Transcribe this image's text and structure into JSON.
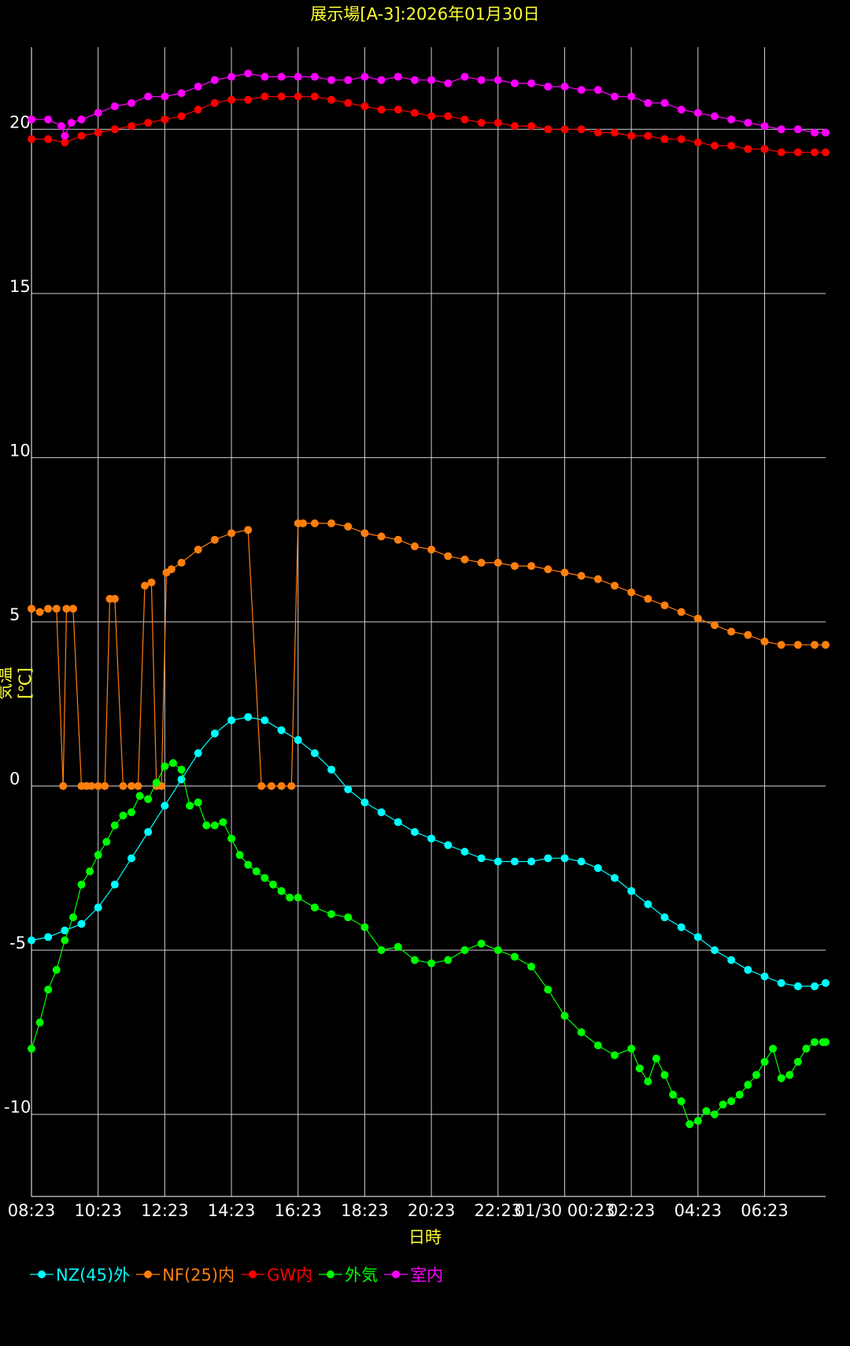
{
  "chart_data": {
    "type": "line",
    "title": "展示場[A-3]:2026年01月30日",
    "xlabel": "日時",
    "ylabel": "気温[℃]",
    "ylim": [
      -12.5,
      22.5
    ],
    "y_ticks": [
      20,
      15,
      10,
      5,
      0,
      -5,
      -10
    ],
    "x_ticks": [
      "08:23",
      "10:23",
      "12:23",
      "14:23",
      "16:23",
      "18:23",
      "20:23",
      "22:23",
      "01/30 00:23",
      "02:23",
      "04:23",
      "06:23"
    ],
    "x_range_hours": [
      0,
      23.83
    ],
    "grid": true,
    "legend_position": "bottom-left",
    "series": [
      {
        "name": "NZ(45)外",
        "color": "#00ffff",
        "x": [
          0,
          0.5,
          1,
          1.5,
          2,
          2.5,
          3,
          3.5,
          4,
          4.5,
          5,
          5.5,
          6,
          6.5,
          7,
          7.5,
          8,
          8.5,
          9,
          9.5,
          10,
          10.5,
          11,
          11.5,
          12,
          12.5,
          13,
          13.5,
          14,
          14.5,
          15,
          15.5,
          16,
          16.5,
          17,
          17.5,
          18,
          18.5,
          19,
          19.5,
          20,
          20.5,
          21,
          21.5,
          22,
          22.5,
          23,
          23.5,
          23.83
        ],
        "y": [
          -4.7,
          -4.6,
          -4.4,
          -4.2,
          -3.7,
          -3.0,
          -2.2,
          -1.4,
          -0.6,
          0.2,
          1.0,
          1.6,
          2.0,
          2.1,
          2.0,
          1.7,
          1.4,
          1.0,
          0.5,
          -0.1,
          -0.5,
          -0.8,
          -1.1,
          -1.4,
          -1.6,
          -1.8,
          -2.0,
          -2.2,
          -2.3,
          -2.3,
          -2.3,
          -2.2,
          -2.2,
          -2.3,
          -2.5,
          -2.8,
          -3.2,
          -3.6,
          -4.0,
          -4.3,
          -4.6,
          -5.0,
          -5.3,
          -5.6,
          -5.8,
          -6.0,
          -6.1,
          -6.1,
          -6.0
        ]
      },
      {
        "name": "NF(25)内",
        "color": "#ff7f0e",
        "x": [
          0,
          0.25,
          0.5,
          0.75,
          0.95,
          1.05,
          1.25,
          1.5,
          1.65,
          1.8,
          2.0,
          2.2,
          2.35,
          2.5,
          2.75,
          3.0,
          3.2,
          3.4,
          3.6,
          3.75,
          3.9,
          4.05,
          4.2,
          4.5,
          5.0,
          5.5,
          6.0,
          6.5,
          6.9,
          7.2,
          7.5,
          7.8,
          8.0,
          8.15,
          8.5,
          9.0,
          9.5,
          10,
          10.5,
          11,
          11.5,
          12,
          12.5,
          13,
          13.5,
          14,
          14.5,
          15,
          15.5,
          16,
          16.5,
          17,
          17.5,
          18,
          18.5,
          19,
          19.5,
          20,
          20.5,
          21,
          21.5,
          22,
          22.5,
          23,
          23.5,
          23.83
        ],
        "y": [
          5.4,
          5.3,
          5.4,
          5.4,
          0.0,
          5.4,
          5.4,
          0.0,
          0.0,
          0.0,
          0.0,
          0.0,
          5.7,
          5.7,
          0.0,
          0.0,
          0.0,
          6.1,
          6.2,
          0.0,
          0.0,
          6.5,
          6.6,
          6.8,
          7.2,
          7.5,
          7.7,
          7.8,
          0.0,
          0.0,
          0.0,
          0.0,
          8.0,
          8.0,
          8.0,
          8.0,
          7.9,
          7.7,
          7.6,
          7.5,
          7.3,
          7.2,
          7.0,
          6.9,
          6.8,
          6.8,
          6.7,
          6.7,
          6.6,
          6.5,
          6.4,
          6.3,
          6.1,
          5.9,
          5.7,
          5.5,
          5.3,
          5.1,
          4.9,
          4.7,
          4.6,
          4.4,
          4.3,
          4.3,
          4.3,
          4.3
        ]
      },
      {
        "name": "GW内",
        "color": "#ff0000",
        "x": [
          0,
          0.5,
          1,
          1.5,
          2,
          2.5,
          3,
          3.5,
          4,
          4.5,
          5,
          5.5,
          6,
          6.5,
          7,
          7.5,
          8,
          8.5,
          9,
          9.5,
          10,
          10.5,
          11,
          11.5,
          12,
          12.5,
          13,
          13.5,
          14,
          14.5,
          15,
          15.5,
          16,
          16.5,
          17,
          17.5,
          18,
          18.5,
          19,
          19.5,
          20,
          20.5,
          21,
          21.5,
          22,
          22.5,
          23,
          23.5,
          23.83
        ],
        "y": [
          19.7,
          19.7,
          19.6,
          19.8,
          19.9,
          20.0,
          20.1,
          20.2,
          20.3,
          20.4,
          20.6,
          20.8,
          20.9,
          20.9,
          21.0,
          21.0,
          21.0,
          21.0,
          20.9,
          20.8,
          20.7,
          20.6,
          20.6,
          20.5,
          20.4,
          20.4,
          20.3,
          20.2,
          20.2,
          20.1,
          20.1,
          20.0,
          20.0,
          20.0,
          19.9,
          19.9,
          19.8,
          19.8,
          19.7,
          19.7,
          19.6,
          19.5,
          19.5,
          19.4,
          19.4,
          19.3,
          19.3,
          19.3,
          19.3
        ]
      },
      {
        "name": "外気",
        "color": "#00ff00",
        "x": [
          0,
          0.25,
          0.5,
          0.75,
          1,
          1.25,
          1.5,
          1.75,
          2,
          2.25,
          2.5,
          2.75,
          3,
          3.25,
          3.5,
          3.75,
          4,
          4.25,
          4.5,
          4.75,
          5,
          5.25,
          5.5,
          5.75,
          6,
          6.25,
          6.5,
          6.75,
          7,
          7.25,
          7.5,
          7.75,
          8,
          8.5,
          9,
          9.5,
          10,
          10.5,
          11,
          11.5,
          12,
          12.5,
          13,
          13.5,
          14,
          14.5,
          15,
          15.5,
          16,
          16.5,
          17,
          17.5,
          18,
          18.25,
          18.5,
          18.75,
          19,
          19.25,
          19.5,
          19.75,
          20,
          20.25,
          20.5,
          20.75,
          21,
          21.25,
          21.5,
          21.75,
          22,
          22.25,
          22.5,
          22.75,
          23,
          23.25,
          23.5,
          23.75,
          23.83
        ],
        "y": [
          -8.0,
          -7.2,
          -6.2,
          -5.6,
          -4.7,
          -4.0,
          -3.0,
          -2.6,
          -2.1,
          -1.7,
          -1.2,
          -0.9,
          -0.8,
          -0.3,
          -0.4,
          0.1,
          0.6,
          0.7,
          0.5,
          -0.6,
          -0.5,
          -1.2,
          -1.2,
          -1.1,
          -1.6,
          -2.1,
          -2.4,
          -2.6,
          -2.8,
          -3.0,
          -3.2,
          -3.4,
          -3.4,
          -3.7,
          -3.9,
          -4.0,
          -4.3,
          -5.0,
          -4.9,
          -5.3,
          -5.4,
          -5.3,
          -5.0,
          -4.8,
          -5.0,
          -5.2,
          -5.5,
          -6.2,
          -7.0,
          -7.5,
          -7.9,
          -8.2,
          -8.0,
          -8.6,
          -9.0,
          -8.3,
          -8.8,
          -9.4,
          -9.6,
          -10.3,
          -10.2,
          -9.9,
          -10.0,
          -9.7,
          -9.6,
          -9.4,
          -9.1,
          -8.8,
          -8.4,
          -8.0,
          -8.9,
          -8.8,
          -8.4,
          -8.0,
          -7.8,
          -7.8,
          -7.8
        ]
      },
      {
        "name": "室内",
        "color": "#ff00ff",
        "x": [
          0,
          0.5,
          0.9,
          1.0,
          1.2,
          1.5,
          2,
          2.5,
          3,
          3.5,
          4,
          4.5,
          5,
          5.5,
          6,
          6.5,
          7,
          7.5,
          8,
          8.5,
          9,
          9.5,
          10,
          10.5,
          11,
          11.5,
          12,
          12.5,
          13,
          13.5,
          14,
          14.5,
          15,
          15.5,
          16,
          16.5,
          17,
          17.5,
          18,
          18.5,
          19,
          19.5,
          20,
          20.5,
          21,
          21.5,
          22,
          22.5,
          23,
          23.5,
          23.83
        ],
        "y": [
          20.3,
          20.3,
          20.1,
          19.8,
          20.2,
          20.3,
          20.5,
          20.7,
          20.8,
          21.0,
          21.0,
          21.1,
          21.3,
          21.5,
          21.6,
          21.7,
          21.6,
          21.6,
          21.6,
          21.6,
          21.5,
          21.5,
          21.6,
          21.5,
          21.6,
          21.5,
          21.5,
          21.4,
          21.6,
          21.5,
          21.5,
          21.4,
          21.4,
          21.3,
          21.3,
          21.2,
          21.2,
          21.0,
          21.0,
          20.8,
          20.8,
          20.6,
          20.5,
          20.4,
          20.3,
          20.2,
          20.1,
          20.0,
          20.0,
          19.9,
          19.9
        ]
      }
    ]
  }
}
